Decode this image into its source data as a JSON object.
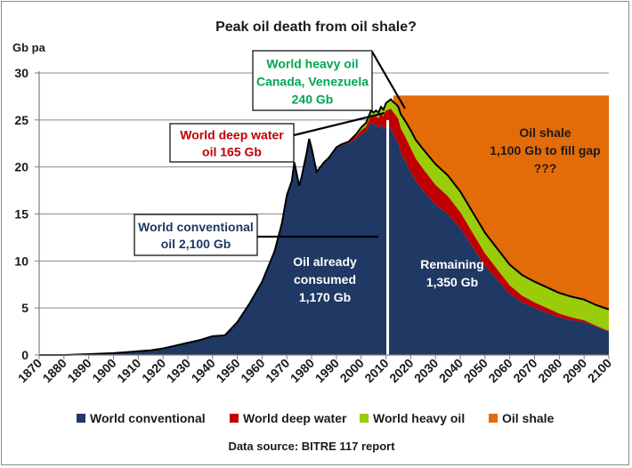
{
  "chart_data": {
    "type": "area",
    "title": "Peak oil death from oil shale?",
    "ylabel": "Gb pa",
    "xlim": [
      1870,
      2100
    ],
    "ylim": [
      0,
      30
    ],
    "grid": "horizontal",
    "legend_position": "bottom",
    "source_note": "Data source: BITRE 117 report",
    "x_ticks": [
      "1870",
      "1880",
      "1890",
      "1900",
      "1910",
      "1920",
      "1930",
      "1940",
      "1950",
      "1960",
      "1970",
      "1980",
      "1990",
      "2000",
      "2010",
      "2020",
      "2030",
      "2040",
      "2050",
      "2060",
      "2070",
      "2080",
      "2090",
      "2100"
    ],
    "y_ticks": [
      "0",
      "5",
      "10",
      "15",
      "20",
      "25",
      "30"
    ],
    "divider_year": 2010,
    "x": [
      1870,
      1880,
      1890,
      1900,
      1905,
      1910,
      1915,
      1920,
      1925,
      1930,
      1935,
      1940,
      1945,
      1950,
      1955,
      1960,
      1965,
      1968,
      1970,
      1972,
      1973,
      1975,
      1976,
      1978,
      1979,
      1980,
      1982,
      1983,
      1985,
      1987,
      1990,
      1992,
      1995,
      1998,
      2000,
      2002,
      2004,
      2005,
      2006,
      2007,
      2008,
      2009,
      2010,
      2011,
      2012,
      2013,
      2014,
      2015,
      2016,
      2017,
      2018,
      2020,
      2022,
      2025,
      2030,
      2035,
      2040,
      2045,
      2050,
      2055,
      2060,
      2065,
      2070,
      2075,
      2080,
      2085,
      2090,
      2095,
      2100
    ],
    "series": [
      {
        "name": "World conventional",
        "color": "#1f3864",
        "values": [
          0,
          0,
          0.1,
          0.2,
          0.3,
          0.4,
          0.5,
          0.7,
          1.0,
          1.3,
          1.6,
          2.0,
          2.1,
          3.5,
          5.5,
          7.8,
          11,
          14,
          17,
          18.5,
          20.5,
          18,
          19,
          21.5,
          23,
          22,
          19.5,
          19.8,
          20.5,
          21,
          22,
          22.3,
          22.5,
          23,
          23.5,
          23.8,
          24.8,
          24.5,
          24.5,
          24.2,
          24.5,
          24.0,
          24.3,
          24.2,
          24.1,
          23.5,
          23,
          22.5,
          21.5,
          21,
          20.5,
          19.5,
          18.5,
          17.5,
          16,
          15,
          13.5,
          11.5,
          9.5,
          8,
          6.5,
          5.6,
          5,
          4.5,
          4,
          3.7,
          3.5,
          3,
          2.5
        ]
      },
      {
        "name": "World deep water",
        "color": "#c00000",
        "values": [
          0,
          0,
          0,
          0,
          0,
          0,
          0,
          0,
          0,
          0,
          0,
          0,
          0,
          0,
          0,
          0,
          0,
          0,
          0,
          0,
          0,
          0,
          0,
          0,
          0,
          0,
          0,
          0,
          0,
          0,
          0.1,
          0.1,
          0.2,
          0.3,
          0.4,
          0.5,
          0.7,
          0.8,
          0.9,
          1.0,
          1.2,
          1.4,
          1.7,
          1.9,
          2.1,
          2.3,
          2.5,
          2.6,
          2.6,
          2.6,
          2.6,
          2.5,
          2.4,
          2.3,
          2.1,
          1.9,
          1.7,
          1.5,
          1.3,
          1.1,
          0.9,
          0.7,
          0.6,
          0.5,
          0.4,
          0.3,
          0.2,
          0.1,
          0.05
        ]
      },
      {
        "name": "World heavy oil",
        "color": "#9bcc0a",
        "values": [
          0,
          0,
          0,
          0,
          0,
          0,
          0,
          0,
          0,
          0,
          0,
          0,
          0,
          0,
          0,
          0,
          0,
          0,
          0,
          0,
          0,
          0,
          0,
          0,
          0,
          0,
          0,
          0,
          0,
          0,
          0,
          0,
          0,
          0.2,
          0.3,
          0.4,
          0.5,
          0.5,
          0.6,
          0.6,
          0.7,
          0.7,
          0.8,
          0.9,
          1.0,
          1.1,
          1.2,
          1.3,
          1.5,
          1.6,
          1.7,
          1.9,
          2.0,
          2.1,
          2.2,
          2.2,
          2.2,
          2.2,
          2.2,
          2.2,
          2.2,
          2.2,
          2.2,
          2.2,
          2.2,
          2.2,
          2.2,
          2.2,
          2.3
        ]
      },
      {
        "name": "Oil shale",
        "color": "#e36c09",
        "fill_to": 27.6,
        "start_year": 2013
      }
    ],
    "annotations": {
      "heavy": {
        "lines": [
          "World heavy oil",
          "Canada, Venezuela",
          "240 Gb"
        ],
        "color": "#00a651"
      },
      "deep": {
        "lines": [
          "World deep water",
          "oil  165 Gb"
        ],
        "color": "#c00000"
      },
      "conv": {
        "lines": [
          "World conventional",
          "oil  2,100 Gb"
        ],
        "color": "#1f3864"
      },
      "consumed": {
        "lines": [
          "Oil already",
          "consumed",
          "1,170 Gb"
        ],
        "color": "#ffffff"
      },
      "remaining": {
        "lines": [
          "Remaining",
          "1,350 Gb"
        ],
        "color": "#ffffff"
      },
      "shale": {
        "lines": [
          "Oil shale",
          "1,100 Gb to fill gap",
          "???"
        ],
        "color": "#1a1a1a"
      }
    }
  }
}
